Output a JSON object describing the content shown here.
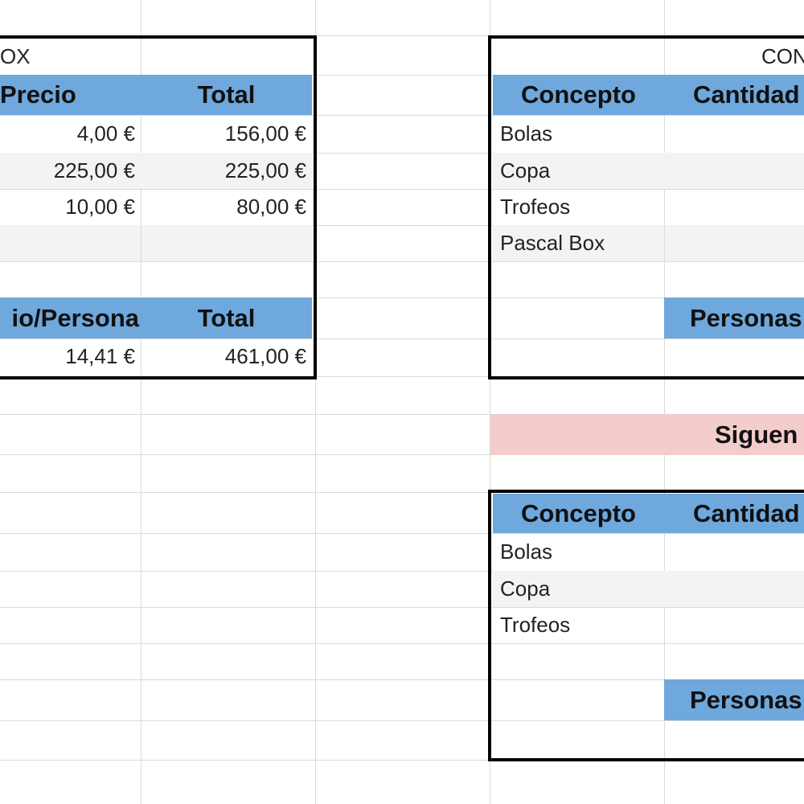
{
  "left_table": {
    "title_fragment": "OX",
    "header": {
      "precio": "Precio",
      "total": "Total"
    },
    "rows": [
      {
        "precio": "4,00 €",
        "total": "156,00 €"
      },
      {
        "precio": "225,00 €",
        "total": "225,00 €"
      },
      {
        "precio": "10,00 €",
        "total": "80,00 €"
      }
    ],
    "summary_header": {
      "per_person": "io/Persona",
      "total": "Total"
    },
    "summary": {
      "per_person": "14,41 €",
      "total": "461,00 €"
    }
  },
  "right_table_1": {
    "title_fragment": "CON",
    "header": {
      "concepto": "Concepto",
      "cantidad": "Cantidad"
    },
    "concepts": [
      "Bolas",
      "Copa",
      "Trofeos",
      "Pascal Box"
    ],
    "personas_label": "Personas"
  },
  "banner": {
    "label": "Siguen"
  },
  "right_table_2": {
    "header": {
      "concepto": "Concepto",
      "cantidad": "Cantidad"
    },
    "concepts": [
      "Bolas",
      "Copa",
      "Trofeos"
    ],
    "personas_label": "Personas"
  },
  "colors": {
    "header_blue": "#6fa8dc",
    "banner_pink": "#f4cccc",
    "band_grey": "#f3f3f3",
    "gridline": "#dadada"
  }
}
